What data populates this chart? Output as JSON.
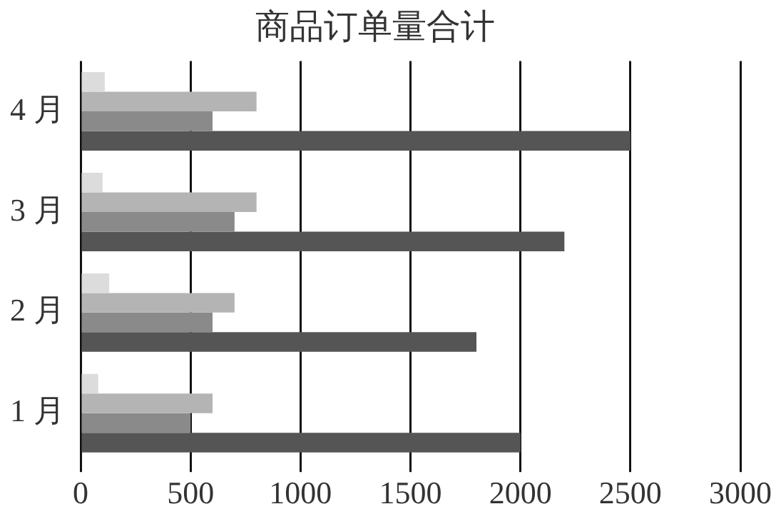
{
  "chart_data": {
    "type": "bar",
    "orientation": "horizontal",
    "title": "商品订单量合计",
    "categories": [
      "4 月",
      "3 月",
      "2 月",
      "1 月"
    ],
    "series": [
      {
        "color": "#dcdcdc",
        "values": [
          110,
          100,
          130,
          80
        ]
      },
      {
        "color": "#b4b4b4",
        "values": [
          800,
          800,
          700,
          600
        ]
      },
      {
        "color": "#8a8a8a",
        "values": [
          600,
          700,
          600,
          500
        ]
      },
      {
        "color": "#555555",
        "values": [
          2500,
          2200,
          1800,
          2000
        ]
      }
    ],
    "xlim": [
      0,
      3000
    ],
    "xticks": [
      0,
      500,
      1000,
      1500,
      2000,
      2500,
      3000
    ],
    "grid": "x",
    "legend": false
  }
}
